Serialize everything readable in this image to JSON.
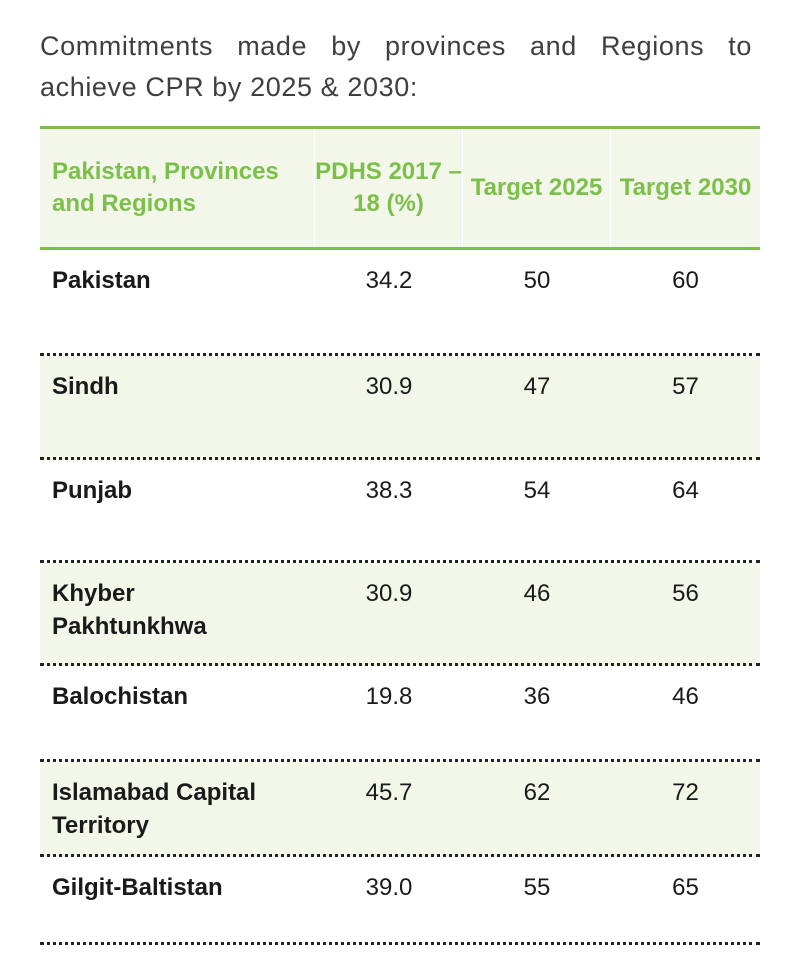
{
  "caption": "Commitments made by provinces and Regions to achieve CPR by 2025 & 2030:",
  "table": {
    "headers": {
      "region": "Pakistan, Provinces and Regions",
      "pdhs": "PDHS 2017 –18 (%)",
      "target_2025": "Target 2025",
      "target_2030": "Target 2030"
    },
    "rows": [
      {
        "name": "Pakistan",
        "pdhs": "34.2",
        "t2025": "50",
        "t2030": "60"
      },
      {
        "name": "Sindh",
        "pdhs": "30.9",
        "t2025": "47",
        "t2030": "57"
      },
      {
        "name": "Punjab",
        "pdhs": "38.3",
        "t2025": "54",
        "t2030": "64"
      },
      {
        "name": "Khyber Pakhtunkhwa",
        "pdhs": "30.9",
        "t2025": "46",
        "t2030": "56"
      },
      {
        "name": "Balochistan",
        "pdhs": "19.8",
        "t2025": "36",
        "t2030": "46"
      },
      {
        "name": "Islamabad Capital Territory",
        "pdhs": "45.7",
        "t2025": "62",
        "t2030": "72"
      },
      {
        "name": "Gilgit-Baltistan",
        "pdhs": "39.0",
        "t2025": "55",
        "t2030": "65"
      }
    ]
  },
  "colors": {
    "accent_green": "#7cc04b",
    "row_shade": "#f3f7ea",
    "text": "#1a1a1a"
  }
}
